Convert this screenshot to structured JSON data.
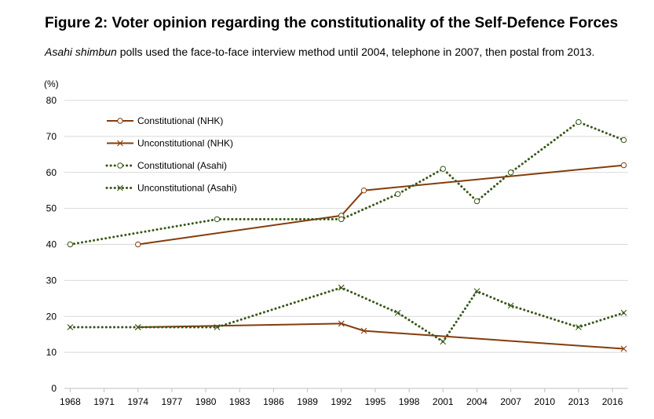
{
  "title": "Figure 2: Voter opinion regarding the constitutionality of the Self-Defence Forces",
  "subtitle": {
    "italic": "Asahi shimbun",
    "rest": " polls used the face-to-face interview method until 2004, telephone in 2007, then postal from 2013."
  },
  "chart_data": {
    "type": "line",
    "title": "Figure 2: Voter opinion regarding the constitutionality of the Self-Defence Forces",
    "ylabel": "(%)",
    "xlabel": "",
    "ylim": [
      0,
      80
    ],
    "xlim": [
      1968,
      2017
    ],
    "yticks": [
      0,
      10,
      20,
      30,
      40,
      50,
      60,
      70,
      80
    ],
    "xticks": [
      "1968",
      "1971",
      "1974",
      "1977",
      "1980",
      "1983",
      "1986",
      "1989",
      "1992",
      "1995",
      "1998",
      "2001",
      "2004",
      "2007",
      "2010",
      "2013",
      "2016"
    ],
    "grid": true,
    "legend_position": "top-left",
    "series": [
      {
        "name": "Constitutional (NHK)",
        "style": "solid",
        "marker": "circle",
        "color": "#843c0c",
        "x": [
          1974,
          1992,
          1994,
          2017
        ],
        "y": [
          40,
          48,
          55,
          62
        ]
      },
      {
        "name": "Unconstitutional (NHK)",
        "style": "solid",
        "marker": "cross",
        "color": "#843c0c",
        "x": [
          1974,
          1992,
          1994,
          2017
        ],
        "y": [
          17,
          18,
          16,
          11
        ]
      },
      {
        "name": "Constitutional (Asahi)",
        "style": "dotted",
        "marker": "circle",
        "color": "#38571a",
        "x": [
          1968,
          1981,
          1992,
          1997,
          2001,
          2004,
          2007,
          2013,
          2017
        ],
        "y": [
          40,
          47,
          47,
          54,
          61,
          52,
          60,
          74,
          69
        ]
      },
      {
        "name": "Unconstitutional (Asahi)",
        "style": "dotted",
        "marker": "cross",
        "color": "#38571a",
        "x": [
          1968,
          1974,
          1981,
          1992,
          1997,
          2001,
          2004,
          2007,
          2013,
          2017
        ],
        "y": [
          17,
          17,
          17,
          28,
          21,
          13,
          27,
          23,
          17,
          21
        ]
      }
    ]
  }
}
